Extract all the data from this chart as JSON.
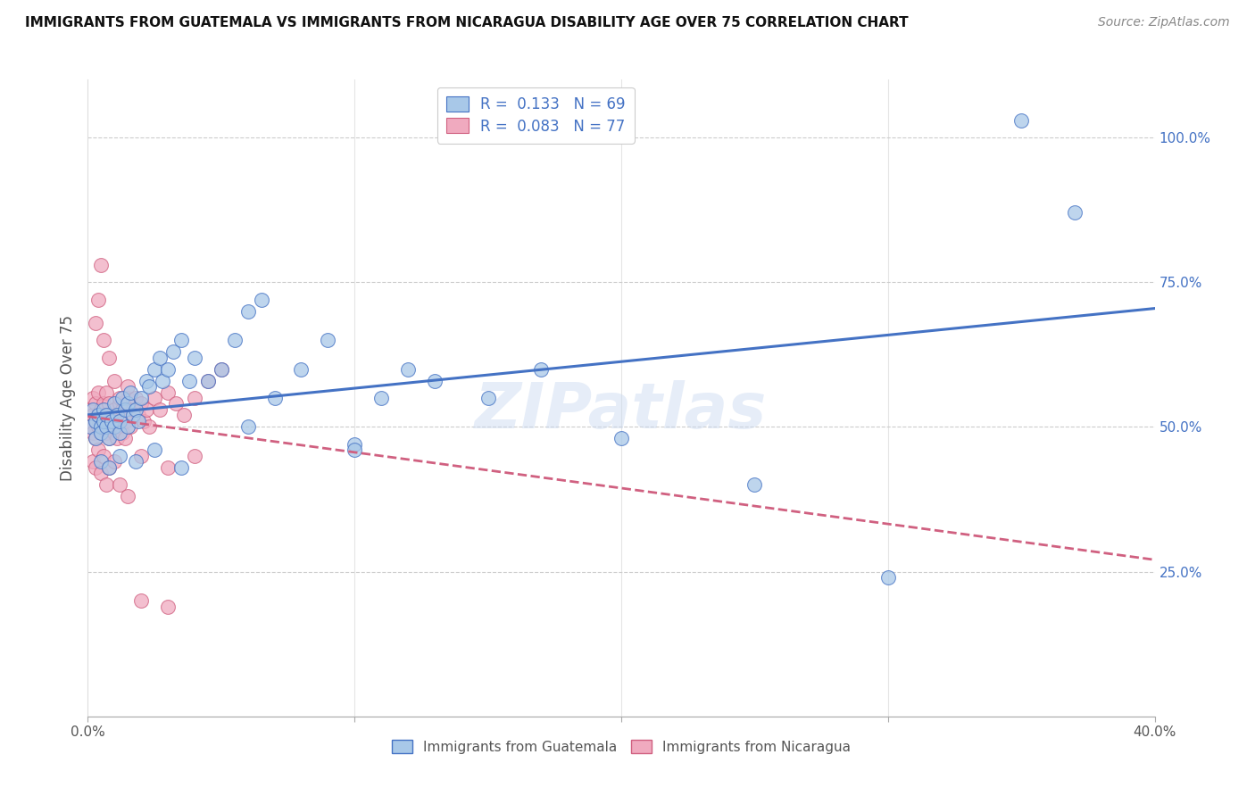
{
  "title": "IMMIGRANTS FROM GUATEMALA VS IMMIGRANTS FROM NICARAGUA DISABILITY AGE OVER 75 CORRELATION CHART",
  "source": "Source: ZipAtlas.com",
  "ylabel": "Disability Age Over 75",
  "legend_label_1": "Immigrants from Guatemala",
  "legend_label_2": "Immigrants from Nicaragua",
  "R1": 0.133,
  "N1": 69,
  "R2": 0.083,
  "N2": 77,
  "color_blue": "#a8c8e8",
  "color_pink": "#f0aabf",
  "color_blue_dark": "#4472c4",
  "color_pink_dark": "#d06080",
  "watermark": "ZIPatlas",
  "xlim": [
    0.0,
    0.4
  ],
  "ylim": [
    0.0,
    1.1
  ],
  "blue_x": [
    0.001,
    0.002,
    0.003,
    0.003,
    0.004,
    0.005,
    0.005,
    0.006,
    0.006,
    0.007,
    0.007,
    0.008,
    0.009,
    0.01,
    0.01,
    0.011,
    0.012,
    0.012,
    0.013,
    0.014,
    0.015,
    0.015,
    0.016,
    0.017,
    0.018,
    0.019,
    0.02,
    0.022,
    0.023,
    0.025,
    0.027,
    0.028,
    0.03,
    0.032,
    0.035,
    0.038,
    0.04,
    0.045,
    0.05,
    0.055,
    0.06,
    0.065,
    0.07,
    0.08,
    0.09,
    0.1,
    0.11,
    0.12,
    0.13,
    0.15,
    0.17,
    0.2,
    0.25,
    0.35,
    0.37,
    0.005,
    0.008,
    0.012,
    0.018,
    0.025,
    0.035,
    0.06,
    0.1,
    0.3
  ],
  "blue_y": [
    0.5,
    0.53,
    0.51,
    0.48,
    0.52,
    0.5,
    0.49,
    0.51,
    0.53,
    0.5,
    0.52,
    0.48,
    0.51,
    0.5,
    0.54,
    0.52,
    0.49,
    0.51,
    0.55,
    0.53,
    0.54,
    0.5,
    0.56,
    0.52,
    0.53,
    0.51,
    0.55,
    0.58,
    0.57,
    0.6,
    0.62,
    0.58,
    0.6,
    0.63,
    0.65,
    0.58,
    0.62,
    0.58,
    0.6,
    0.65,
    0.7,
    0.72,
    0.55,
    0.6,
    0.65,
    0.47,
    0.55,
    0.6,
    0.58,
    0.55,
    0.6,
    0.48,
    0.4,
    1.03,
    0.87,
    0.44,
    0.43,
    0.45,
    0.44,
    0.46,
    0.43,
    0.5,
    0.46,
    0.24
  ],
  "pink_x": [
    0.001,
    0.001,
    0.002,
    0.002,
    0.002,
    0.003,
    0.003,
    0.003,
    0.004,
    0.004,
    0.004,
    0.005,
    0.005,
    0.005,
    0.006,
    0.006,
    0.007,
    0.007,
    0.007,
    0.008,
    0.008,
    0.008,
    0.009,
    0.009,
    0.01,
    0.01,
    0.01,
    0.011,
    0.011,
    0.012,
    0.012,
    0.013,
    0.013,
    0.014,
    0.014,
    0.015,
    0.015,
    0.016,
    0.017,
    0.018,
    0.019,
    0.02,
    0.021,
    0.022,
    0.023,
    0.025,
    0.027,
    0.03,
    0.033,
    0.036,
    0.04,
    0.045,
    0.05,
    0.003,
    0.004,
    0.005,
    0.006,
    0.008,
    0.01,
    0.012,
    0.015,
    0.002,
    0.003,
    0.004,
    0.005,
    0.006,
    0.007,
    0.008,
    0.01,
    0.012,
    0.015,
    0.02,
    0.03,
    0.04,
    0.02,
    0.03
  ],
  "pink_y": [
    0.5,
    0.53,
    0.52,
    0.49,
    0.55,
    0.51,
    0.48,
    0.54,
    0.5,
    0.52,
    0.56,
    0.49,
    0.53,
    0.51,
    0.5,
    0.54,
    0.49,
    0.52,
    0.56,
    0.5,
    0.54,
    0.48,
    0.52,
    0.5,
    0.49,
    0.53,
    0.51,
    0.48,
    0.52,
    0.5,
    0.54,
    0.49,
    0.53,
    0.51,
    0.48,
    0.52,
    0.55,
    0.5,
    0.53,
    0.55,
    0.52,
    0.54,
    0.51,
    0.53,
    0.5,
    0.55,
    0.53,
    0.56,
    0.54,
    0.52,
    0.55,
    0.58,
    0.6,
    0.68,
    0.72,
    0.78,
    0.65,
    0.62,
    0.58,
    0.55,
    0.57,
    0.44,
    0.43,
    0.46,
    0.42,
    0.45,
    0.4,
    0.43,
    0.44,
    0.4,
    0.38,
    0.45,
    0.43,
    0.45,
    0.2,
    0.19
  ]
}
